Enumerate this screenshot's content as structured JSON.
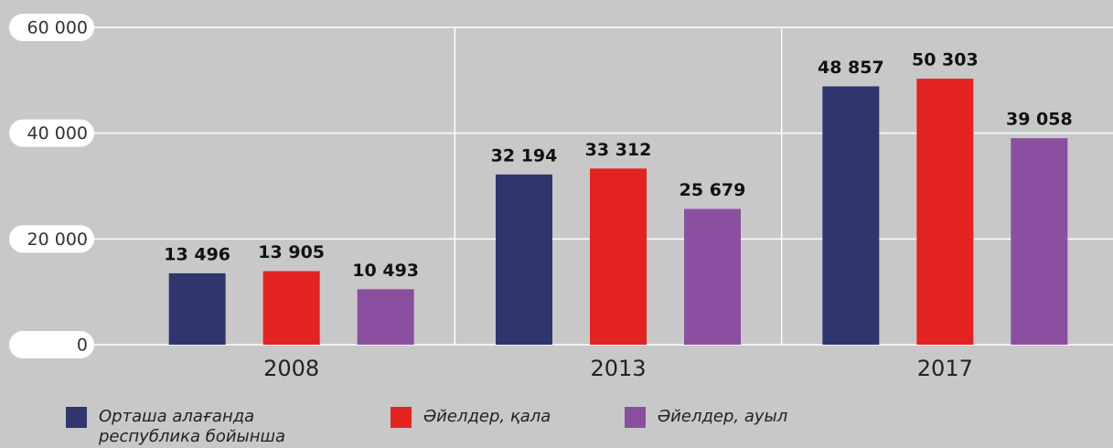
{
  "chart_data": {
    "type": "bar",
    "categories": [
      "2008",
      "2013",
      "2017"
    ],
    "series": [
      {
        "name": "Орташа алағанда республика бойынша",
        "color": "#31356e",
        "values": [
          13496,
          32194,
          48857
        ],
        "value_labels": [
          "13 496",
          "32 194",
          "48 857"
        ]
      },
      {
        "name": "Әйелдер, қала",
        "color": "#e32321",
        "values": [
          13905,
          33312,
          50303
        ],
        "value_labels": [
          "13 905",
          "33 312",
          "50 303"
        ]
      },
      {
        "name": "Әйелдер, ауыл",
        "color": "#8a4f9e",
        "values": [
          10493,
          25679,
          39058
        ],
        "value_labels": [
          "10 493",
          "25 679",
          "39 058"
        ]
      }
    ],
    "ylim": [
      0,
      60000
    ],
    "yticks": [
      {
        "value": 0,
        "label": "0"
      },
      {
        "value": 20000,
        "label": "20 000"
      },
      {
        "value": 40000,
        "label": "40 000"
      },
      {
        "value": 60000,
        "label": "60 000"
      }
    ],
    "grid": true,
    "legend": "bottom"
  }
}
